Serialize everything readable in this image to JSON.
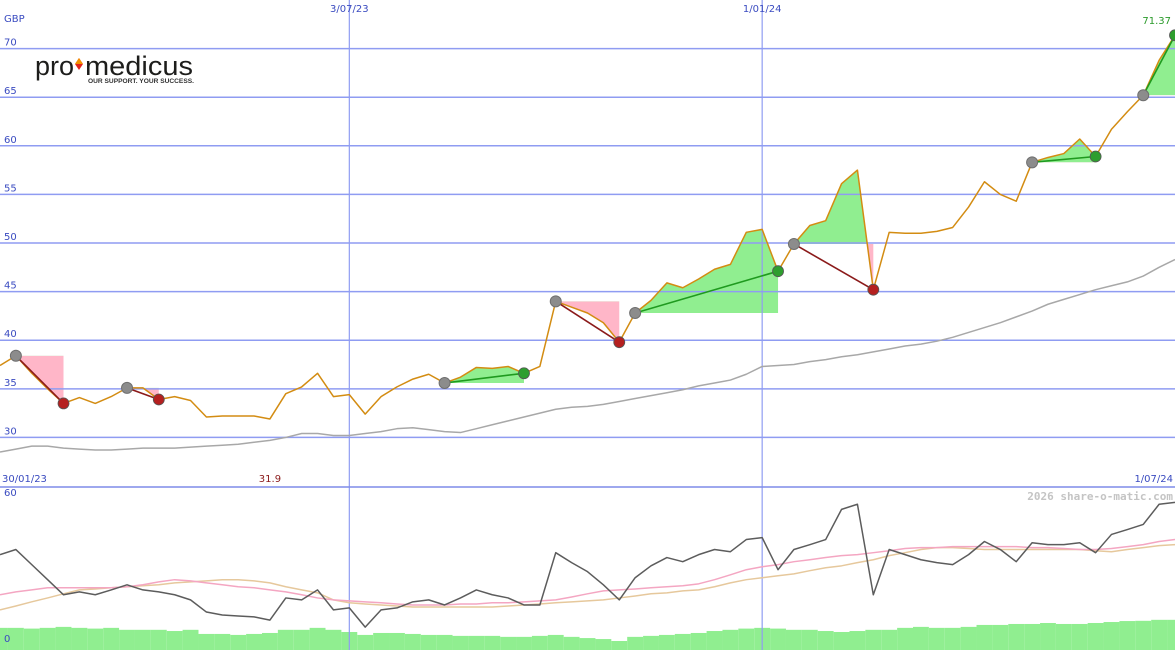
{
  "logo": {
    "pre": "pro",
    "post": "medicus",
    "tagline": "OUR SUPPORT. YOUR SUCCESS."
  },
  "chart_data": [
    {
      "type": "line",
      "y_unit": "GBP",
      "xlim": [
        "2023-01-30",
        "2024-07-01"
      ],
      "xticks": [
        {
          "value": "2023-01-30",
          "label": "30/01/23"
        },
        {
          "value": "2023-07-03",
          "label": "3/07/23"
        },
        {
          "value": "2024-01-01",
          "label": "1/01/24"
        },
        {
          "value": "2024-07-01",
          "label": "1/07/24"
        }
      ],
      "ylim": [
        24.9,
        75
      ],
      "yticks": [
        30,
        35,
        40,
        45,
        50,
        55,
        60,
        65,
        70
      ],
      "grid": true,
      "x": [
        "2023-01-30",
        "2023-02-06",
        "2023-02-13",
        "2023-02-20",
        "2023-02-27",
        "2023-03-06",
        "2023-03-13",
        "2023-03-20",
        "2023-03-27",
        "2023-04-03",
        "2023-04-10",
        "2023-04-17",
        "2023-04-24",
        "2023-05-01",
        "2023-05-08",
        "2023-05-15",
        "2023-05-22",
        "2023-05-29",
        "2023-06-05",
        "2023-06-12",
        "2023-06-19",
        "2023-06-26",
        "2023-07-03",
        "2023-07-10",
        "2023-07-17",
        "2023-07-24",
        "2023-07-31",
        "2023-08-07",
        "2023-08-14",
        "2023-08-21",
        "2023-08-28",
        "2023-09-04",
        "2023-09-11",
        "2023-09-18",
        "2023-09-25",
        "2023-10-02",
        "2023-10-09",
        "2023-10-16",
        "2023-10-23",
        "2023-10-30",
        "2023-11-06",
        "2023-11-13",
        "2023-11-20",
        "2023-11-27",
        "2023-12-04",
        "2023-12-11",
        "2023-12-18",
        "2023-12-25",
        "2024-01-01",
        "2024-01-08",
        "2024-01-15",
        "2024-01-22",
        "2024-01-29",
        "2024-02-05",
        "2024-02-12",
        "2024-02-19",
        "2024-02-26",
        "2024-03-04",
        "2024-03-11",
        "2024-03-18",
        "2024-03-25",
        "2024-04-01",
        "2024-04-08",
        "2024-04-15",
        "2024-04-22",
        "2024-04-29",
        "2024-05-06",
        "2024-05-13",
        "2024-05-20",
        "2024-05-27",
        "2024-06-03",
        "2024-06-10",
        "2024-06-17",
        "2024-06-24",
        "2024-07-01"
      ],
      "series": [
        {
          "color": "#a8a8a8",
          "values": [
            28.5,
            28.8,
            29.1,
            29.1,
            28.9,
            28.8,
            28.7,
            28.7,
            28.8,
            28.9,
            28.9,
            28.9,
            29.0,
            29.1,
            29.2,
            29.3,
            29.5,
            29.7,
            30.0,
            30.4,
            30.4,
            30.2,
            30.2,
            30.4,
            30.6,
            30.9,
            31.0,
            30.8,
            30.6,
            30.5,
            30.9,
            31.3,
            31.7,
            32.1,
            32.5,
            32.9,
            33.1,
            33.2,
            33.4,
            33.7,
            34.0,
            34.3,
            34.6,
            34.9,
            35.3,
            35.6,
            35.9,
            36.5,
            37.3,
            37.4,
            37.5,
            37.8,
            38.0,
            38.3,
            38.5,
            38.8,
            39.1,
            39.4,
            39.6,
            39.9,
            40.3,
            40.8,
            41.3,
            41.8,
            42.4,
            43.0,
            43.7,
            44.2,
            44.7,
            45.2,
            45.6,
            46.0,
            46.6,
            47.5,
            48.3
          ]
        },
        {
          "color": "#d38c12",
          "values": [
            37.4,
            38.4,
            36.6,
            35.0,
            33.5,
            34.1,
            33.5,
            34.2,
            35.1,
            35.1,
            33.9,
            34.2,
            33.8,
            32.1,
            32.2,
            32.2,
            32.2,
            31.9,
            34.5,
            35.2,
            36.6,
            34.2,
            34.4,
            32.4,
            34.2,
            35.2,
            36.0,
            36.5,
            35.6,
            36.2,
            37.2,
            37.1,
            37.3,
            36.6,
            37.3,
            44.0,
            43.4,
            42.8,
            41.8,
            39.8,
            42.8,
            44.1,
            45.9,
            45.4,
            46.3,
            47.3,
            47.8,
            51.1,
            51.4,
            47.1,
            49.9,
            51.8,
            52.3,
            56.1,
            57.5,
            45.2,
            51.1,
            51.0,
            51.0,
            51.2,
            51.6,
            53.7,
            56.3,
            55.0,
            54.3,
            58.3,
            58.8,
            59.2,
            60.7,
            58.9,
            61.7,
            63.5,
            65.2,
            68.8,
            71.37
          ]
        }
      ],
      "rise_fill": "#90ee90",
      "fall_fill": "#ffb6c8",
      "trends": [
        {
          "start": "2023-02-06",
          "end": "2023-02-27",
          "color": "#8b1a1a",
          "end_color": "#b52020"
        },
        {
          "start": "2023-03-27",
          "end": "2023-04-10",
          "color": "#8b1a1a",
          "end_color": "#b52020"
        },
        {
          "start": "2023-08-14",
          "end": "2023-09-18",
          "color": "#1f9a1f",
          "end_color": "#2e9e2e"
        },
        {
          "start": "2023-10-02",
          "end": "2023-10-30",
          "color": "#8b1a1a",
          "end_color": "#b52020"
        },
        {
          "start": "2023-11-06",
          "end": "2024-01-08",
          "color": "#1f9a1f",
          "end_color": "#2e9e2e"
        },
        {
          "start": "2024-01-15",
          "end": "2024-02-19",
          "color": "#8b1a1a",
          "end_color": "#b52020"
        },
        {
          "start": "2024-04-29",
          "end": "2024-05-27",
          "color": "#1f9a1f",
          "end_color": "#2e9e2e"
        },
        {
          "start": "2024-06-17",
          "end": "2024-07-01",
          "color": "#1f9a1f",
          "end_color": "#2e9e2e"
        }
      ],
      "last_color": "#2a9a2a",
      "low_color": "#8b1a1a"
    },
    {
      "type": "line",
      "watermark": "2026 share-o-matic.com",
      "ylim": [
        -2,
        65
      ],
      "yticks": [
        0,
        60
      ],
      "series": [
        {
          "type": "bar",
          "color": "#90ee90",
          "values": [
            7.1,
            7.1,
            6.8,
            7.1,
            7.5,
            7.1,
            6.8,
            7.1,
            6.3,
            6.3,
            6.3,
            5.8,
            6.3,
            4.6,
            4.6,
            4.2,
            4.6,
            5.0,
            6.3,
            6.3,
            7.1,
            6.3,
            5.4,
            4.2,
            5.0,
            5.0,
            4.6,
            4.2,
            4.2,
            3.8,
            3.8,
            3.8,
            3.4,
            3.4,
            3.8,
            4.2,
            3.4,
            2.9,
            2.5,
            1.7,
            3.4,
            3.8,
            4.2,
            4.6,
            5.0,
            5.8,
            6.3,
            6.8,
            7.1,
            6.8,
            6.3,
            6.3,
            5.8,
            5.4,
            5.8,
            6.3,
            6.3,
            7.1,
            7.5,
            7.1,
            7.1,
            7.5,
            8.3,
            8.3,
            8.7,
            8.7,
            9.1,
            8.7,
            8.7,
            9.1,
            9.5,
            9.9,
            10.0,
            10.4,
            10.4
          ]
        },
        {
          "color": "#e6c89c",
          "values": [
            14.5,
            16.1,
            17.8,
            19.4,
            21.1,
            22.7,
            23.1,
            23.6,
            24.0,
            24.4,
            24.8,
            25.6,
            26.0,
            26.4,
            26.9,
            26.9,
            26.4,
            25.6,
            24.0,
            22.7,
            21.5,
            18.6,
            17.4,
            16.9,
            16.5,
            16.1,
            15.7,
            15.7,
            15.7,
            15.7,
            15.7,
            15.7,
            16.1,
            16.5,
            16.9,
            17.4,
            17.8,
            18.2,
            18.6,
            19.4,
            20.2,
            21.1,
            21.5,
            22.3,
            22.7,
            24.0,
            25.6,
            26.9,
            27.7,
            28.5,
            29.3,
            30.6,
            31.8,
            32.6,
            33.9,
            35.1,
            36.8,
            38.0,
            39.3,
            40.1,
            40.1,
            39.7,
            39.3,
            39.3,
            39.3,
            39.3,
            39.3,
            39.3,
            39.3,
            38.8,
            38.4,
            39.3,
            40.1,
            40.9,
            41.3
          ]
        },
        {
          "color": "#f4a6c2",
          "values": [
            20.7,
            21.9,
            22.7,
            23.6,
            23.6,
            23.6,
            23.6,
            23.6,
            24.0,
            24.8,
            26.0,
            26.9,
            26.4,
            25.6,
            24.8,
            24.0,
            23.6,
            22.7,
            21.9,
            20.7,
            19.4,
            18.6,
            18.2,
            17.8,
            17.4,
            16.9,
            16.5,
            16.5,
            16.5,
            16.9,
            16.9,
            17.4,
            17.4,
            17.8,
            18.2,
            18.6,
            19.8,
            21.1,
            22.3,
            22.7,
            23.1,
            23.6,
            24.0,
            24.4,
            25.2,
            26.9,
            28.9,
            31.0,
            32.2,
            33.1,
            34.3,
            35.1,
            36.0,
            36.8,
            37.2,
            38.0,
            38.8,
            39.7,
            40.1,
            40.1,
            40.5,
            40.5,
            40.5,
            40.5,
            40.5,
            40.1,
            40.1,
            39.7,
            39.3,
            39.3,
            39.7,
            40.5,
            41.3,
            42.6,
            43.4
          ]
        },
        {
          "color": "#5c5c5c",
          "values": [
            37.2,
            39.3,
            33.1,
            26.9,
            20.7,
            21.9,
            20.7,
            22.7,
            24.8,
            22.7,
            21.9,
            20.7,
            18.6,
            13.6,
            12.4,
            12.0,
            11.6,
            10.3,
            19.4,
            18.6,
            22.7,
            14.5,
            15.3,
            7.4,
            14.5,
            15.3,
            17.8,
            18.6,
            16.5,
            19.4,
            22.7,
            20.7,
            19.4,
            16.5,
            16.5,
            38.0,
            33.9,
            30.2,
            24.8,
            18.6,
            27.7,
            32.6,
            36.0,
            34.3,
            37.2,
            39.3,
            38.4,
            43.4,
            44.2,
            31.0,
            39.3,
            41.3,
            43.4,
            55.8,
            57.9,
            20.7,
            39.3,
            37.2,
            35.1,
            33.9,
            33.1,
            37.2,
            42.6,
            39.3,
            34.3,
            42.1,
            41.3,
            41.3,
            42.1,
            38.0,
            45.5,
            47.5,
            49.6,
            57.9,
            58.7
          ]
        }
      ]
    }
  ]
}
